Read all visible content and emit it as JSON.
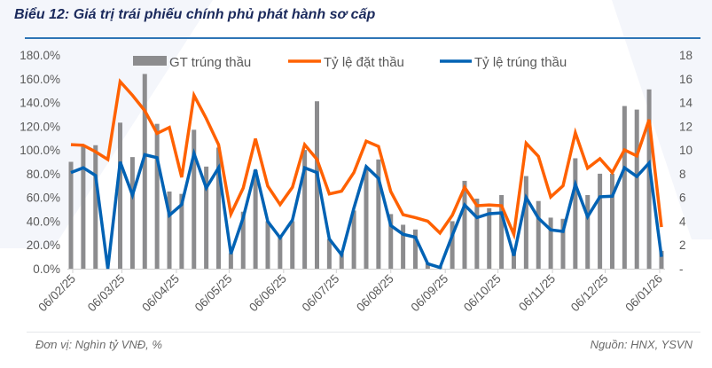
{
  "title": "Biểu 12: Giá trị trái phiếu chính phủ phát hành sơ cấp",
  "footer": {
    "unit": "Đơn vị: Nghìn tỷ VNĐ, %",
    "source": "Nguồn: HNX, YSVN"
  },
  "chart_data": {
    "type": "bar+line",
    "title": "Biểu 12: Giá trị trái phiếu chính phủ phát hành sơ cấp",
    "x": [
      "2025-02-05",
      "2025-02-12",
      "2025-02-19",
      "2025-02-26",
      "2025-03-05",
      "2025-03-12",
      "2025-03-19",
      "2025-03-26",
      "2025-04-02",
      "2025-04-09",
      "2025-04-16",
      "2025-04-23",
      "2025-04-30",
      "2025-05-07",
      "2025-05-14",
      "2025-05-21",
      "2025-05-28",
      "2025-06-04",
      "2025-06-11",
      "2025-06-18",
      "2025-06-25",
      "2025-07-02",
      "2025-07-09",
      "2025-07-16",
      "2025-07-23",
      "2025-07-30",
      "2025-08-06",
      "2025-08-13",
      "2025-08-20",
      "2025-08-27",
      "2025-09-03",
      "2025-09-10",
      "2025-09-17",
      "2025-09-24",
      "2025-10-01",
      "2025-10-08",
      "2025-10-15",
      "2025-10-22",
      "2025-10-29",
      "2025-11-05",
      "2025-11-12",
      "2025-11-19",
      "2025-11-26",
      "2025-12-03",
      "2025-12-10",
      "2025-12-17",
      "2025-12-24",
      "2025-12-31",
      "2026-01-07"
    ],
    "x_tick_labels": [
      "06/02/25",
      "06/03/25",
      "06/04/25",
      "06/05/25",
      "06/06/25",
      "06/07/25",
      "06/08/25",
      "06/09/25",
      "06/10/25",
      "06/11/25",
      "06/12/25",
      "06/01/26"
    ],
    "x_tick_dates": [
      "2025-02-06",
      "2025-03-06",
      "2025-04-06",
      "2025-05-06",
      "2025-06-06",
      "2025-07-06",
      "2025-08-06",
      "2025-09-06",
      "2025-10-06",
      "2025-11-06",
      "2025-12-06",
      "2026-01-06"
    ],
    "y_left": {
      "range": [
        0,
        180
      ],
      "unit": "%",
      "tick_labels": [
        "0.0%",
        "20.0%",
        "40.0%",
        "60.0%",
        "80.0%",
        "100.0%",
        "120.0%",
        "140.0%",
        "160.0%",
        "180.0%"
      ]
    },
    "y_right": {
      "range": [
        0,
        18
      ],
      "tick_labels": [
        "-",
        "2",
        "4",
        "6",
        "8",
        "10",
        "12",
        "14",
        "16",
        "18"
      ]
    },
    "grid": false,
    "legend": "top",
    "series": [
      {
        "name": "GT trúng thầu",
        "type": "bar",
        "axis": "right",
        "color": "#8c8c8e",
        "values": [
          9.0,
          10.3,
          10.4,
          0,
          12.3,
          9.4,
          16.4,
          12.2,
          6.5,
          6.3,
          11.7,
          8.6,
          10.2,
          1.3,
          4.8,
          8.3,
          4.0,
          2.8,
          4.0,
          10.0,
          14.1,
          2.5,
          1.3,
          4.9,
          8.5,
          9.2,
          4.6,
          3.7,
          3.3,
          0.5,
          0.2,
          4.0,
          7.4,
          5.9,
          5.1,
          6.2,
          1.5,
          7.8,
          5.7,
          4.3,
          4.2,
          9.3,
          6.2,
          8.0,
          8.0,
          13.7,
          13.4,
          15.1,
          1.5
        ]
      },
      {
        "name": "Tỷ lệ đặt thầu",
        "type": "line",
        "axis": "left",
        "color": "#ff6100",
        "values": [
          104.5,
          104,
          98.5,
          92,
          157.6,
          146,
          133,
          114,
          119,
          77,
          146,
          126.5,
          104.5,
          46,
          68,
          109.5,
          69.5,
          54,
          68.6,
          104.5,
          92,
          63,
          65.3,
          81,
          107.4,
          103,
          65,
          45.5,
          43,
          40,
          30,
          45,
          68.6,
          53,
          53.7,
          53,
          29,
          105.7,
          94.6,
          60.4,
          69.8,
          114.4,
          84.7,
          92.6,
          81,
          100,
          95,
          125.5,
          35
        ]
      },
      {
        "name": "Tỷ lệ trúng thầu",
        "type": "line",
        "axis": "left",
        "color": "#0062b4",
        "values": [
          81,
          85,
          78.5,
          0,
          90,
          62,
          96,
          93.5,
          45,
          54,
          97,
          68,
          85,
          12.5,
          43,
          83.5,
          39.7,
          26,
          41,
          85,
          81,
          25,
          11.7,
          51,
          86,
          76,
          36.4,
          29,
          26.5,
          4.2,
          1,
          28,
          53.7,
          43,
          46.3,
          47,
          10.9,
          60,
          42.6,
          32.7,
          31.4,
          71,
          43.8,
          60.6,
          61,
          85,
          77.7,
          89,
          10
        ]
      }
    ]
  }
}
